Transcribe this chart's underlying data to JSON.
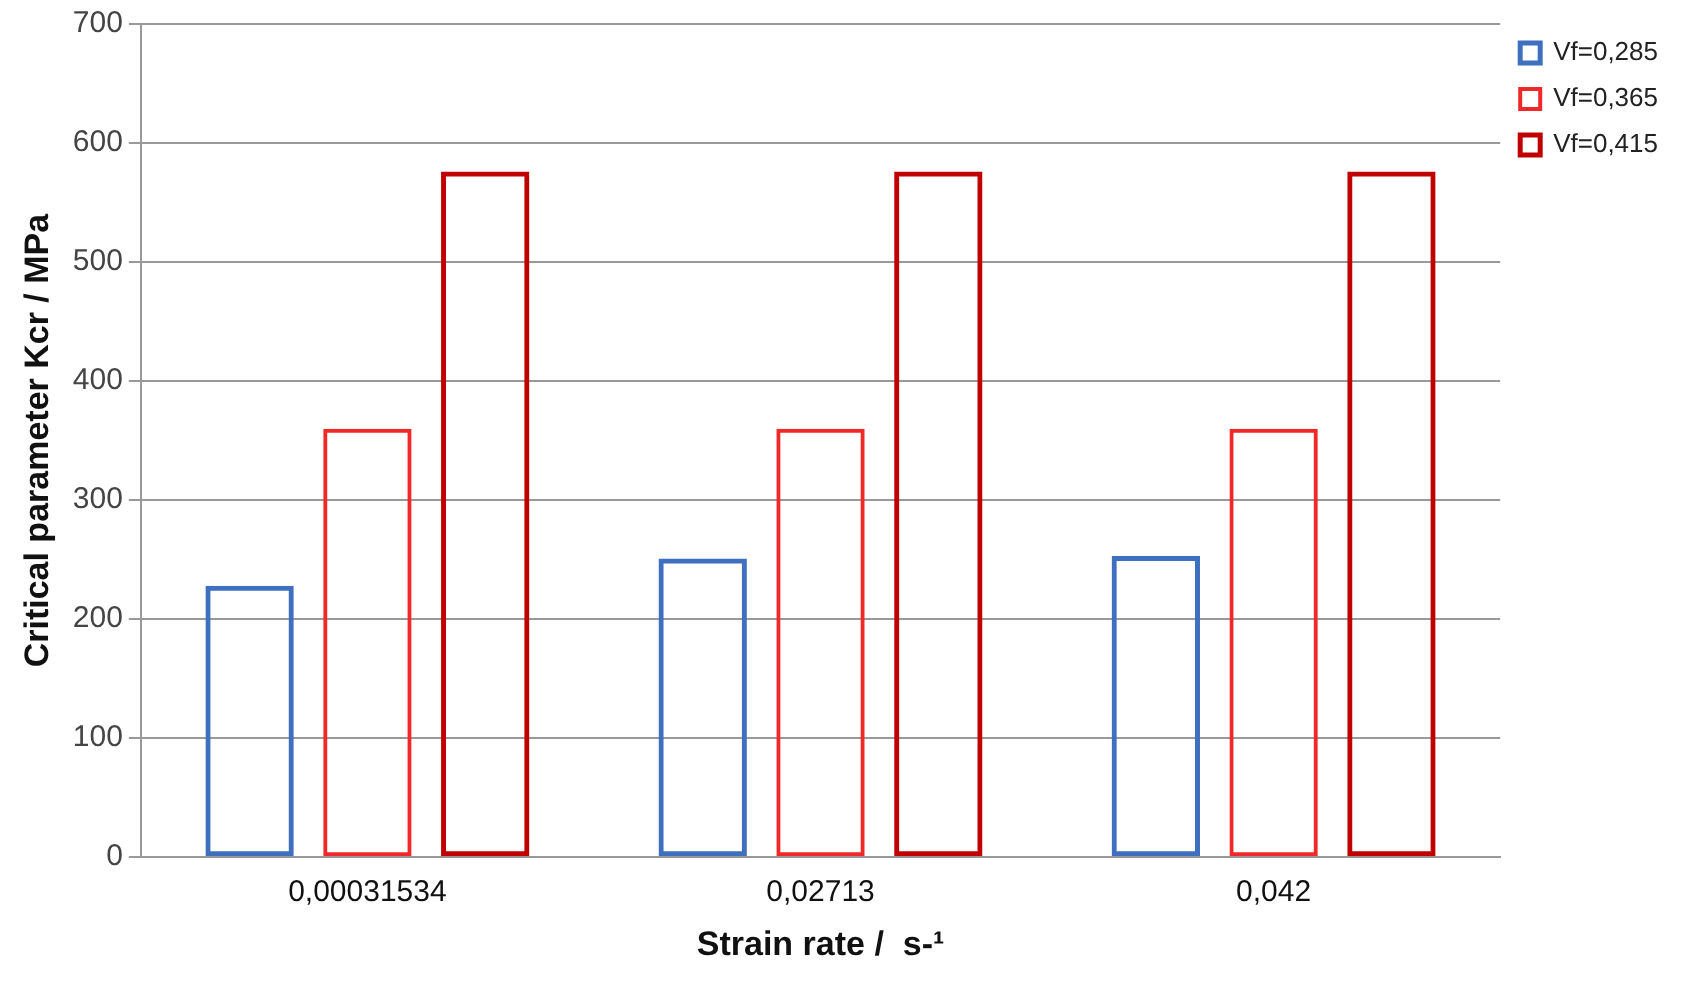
{
  "chart_data": {
    "type": "bar",
    "xlabel": "Strain rate /  s-¹",
    "ylabel": "Critical parameter Kcr / MPa",
    "categories": [
      "0,00031534",
      "0,02713",
      "0,042"
    ],
    "series": [
      {
        "name": "Vf=0,285",
        "color": "#3f6fbf",
        "values": [
          228,
          251,
          253
        ]
      },
      {
        "name": "Vf=0,365",
        "color": "#f02828",
        "values": [
          360,
          360,
          360
        ]
      },
      {
        "name": "Vf=0,415",
        "color": "#c00000",
        "values": [
          576,
          576,
          576
        ]
      }
    ],
    "ylim": [
      0,
      700
    ],
    "yticks": [
      0,
      100,
      200,
      300,
      400,
      500,
      600,
      700
    ],
    "grid": "y",
    "legend": "right"
  }
}
